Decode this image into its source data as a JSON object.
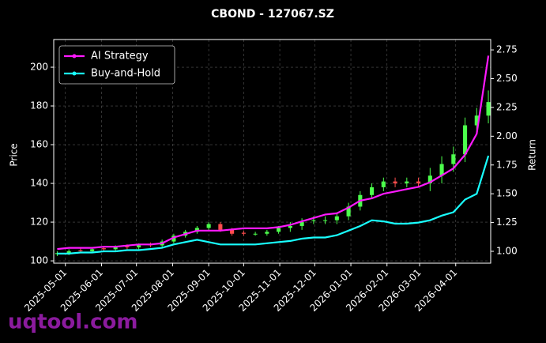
{
  "chart_data": {
    "type": "candlestick",
    "title": "CBOND - 127067.SZ",
    "ylabel": "Price",
    "y2label": "Return",
    "watermark": "uqtool.com",
    "x": [
      "2025-04-24",
      "2025-05-04",
      "2025-05-14",
      "2025-05-24",
      "2025-06-03",
      "2025-06-13",
      "2025-06-23",
      "2025-07-03",
      "2025-07-13",
      "2025-07-23",
      "2025-08-02",
      "2025-08-12",
      "2025-08-22",
      "2025-09-01",
      "2025-09-11",
      "2025-09-21",
      "2025-10-01",
      "2025-10-11",
      "2025-10-21",
      "2025-10-31",
      "2025-11-10",
      "2025-11-20",
      "2025-11-30",
      "2025-12-10",
      "2025-12-20",
      "2025-12-30",
      "2026-01-09",
      "2026-01-19",
      "2026-01-29",
      "2026-02-08",
      "2026-02-18",
      "2026-02-28",
      "2026-03-10",
      "2026-03-20",
      "2026-03-30",
      "2026-04-09",
      "2026-04-19",
      "2026-04-29"
    ],
    "open": [
      103.5,
      104,
      105.5,
      105,
      106.5,
      106,
      107.5,
      107,
      108.5,
      108,
      110,
      113,
      115,
      117,
      119,
      116,
      114.5,
      114,
      114,
      115,
      117,
      118,
      121,
      121,
      121,
      123,
      128,
      134,
      138,
      141,
      140,
      141,
      140,
      144,
      150,
      155,
      170,
      175
    ],
    "high": [
      105,
      106,
      106.5,
      107,
      107.5,
      108,
      108.5,
      109,
      109.5,
      111,
      114,
      116,
      118,
      120,
      120,
      117,
      115.5,
      115,
      116,
      118,
      120,
      122,
      123,
      123,
      125,
      130,
      136,
      140,
      143,
      143,
      143,
      143,
      148,
      154,
      159,
      174,
      179,
      188
    ],
    "low": [
      102.5,
      103,
      104,
      104,
      105,
      105,
      106,
      106,
      107,
      107,
      109,
      112,
      114,
      116,
      115,
      113,
      113,
      113,
      113,
      114,
      115,
      116,
      119,
      119,
      119,
      121,
      126,
      132,
      136,
      138,
      138,
      138,
      136,
      140,
      146,
      151,
      166,
      171
    ],
    "close": [
      104,
      105,
      105,
      106,
      106,
      107,
      107,
      108,
      108,
      110,
      113,
      115,
      117,
      119,
      116,
      114,
      114,
      114,
      115,
      117,
      118,
      120,
      121,
      121,
      123,
      128,
      134,
      138,
      141,
      140,
      141,
      140,
      144,
      150,
      155,
      170,
      175,
      182
    ],
    "up_color": "#4cff4c",
    "down_color": "#ff4c4c",
    "series": [
      {
        "name": "AI Strategy",
        "color": "#ff19ff",
        "axis": "y2",
        "values": [
          1.02,
          1.03,
          1.03,
          1.03,
          1.04,
          1.04,
          1.05,
          1.06,
          1.06,
          1.07,
          1.12,
          1.15,
          1.18,
          1.18,
          1.18,
          1.19,
          1.2,
          1.2,
          1.2,
          1.21,
          1.23,
          1.26,
          1.29,
          1.32,
          1.33,
          1.38,
          1.44,
          1.46,
          1.5,
          1.52,
          1.54,
          1.56,
          1.6,
          1.66,
          1.72,
          1.84,
          2.02,
          2.7
        ]
      },
      {
        "name": "Buy-and-Hold",
        "color": "#19ffff",
        "axis": "y2",
        "values": [
          0.98,
          0.98,
          0.99,
          0.99,
          1.0,
          1.0,
          1.01,
          1.01,
          1.02,
          1.03,
          1.06,
          1.08,
          1.1,
          1.08,
          1.06,
          1.06,
          1.06,
          1.06,
          1.07,
          1.08,
          1.09,
          1.11,
          1.12,
          1.12,
          1.14,
          1.18,
          1.22,
          1.27,
          1.26,
          1.24,
          1.24,
          1.25,
          1.27,
          1.31,
          1.34,
          1.45,
          1.5,
          1.83
        ]
      }
    ],
    "xlim": [
      "2025-04-21",
      "2026-05-01"
    ],
    "xticks": [
      "2025-05-01",
      "2025-06-01",
      "2025-07-01",
      "2025-08-01",
      "2025-09-01",
      "2025-10-01",
      "2025-11-01",
      "2025-12-01",
      "2026-01-01",
      "2026-02-01",
      "2026-03-01",
      "2026-04-01"
    ],
    "ylim": [
      98.8,
      214.3
    ],
    "yticks": [
      100,
      120,
      140,
      160,
      180,
      200
    ],
    "y2lim": [
      0.897,
      2.84
    ],
    "y2ticks": [
      {
        "value": 1,
        "label": "1.00"
      },
      {
        "value": 1.25,
        "label": "1.25"
      },
      {
        "value": 1.5,
        "label": "1.50"
      },
      {
        "value": 1.75,
        "label": "1.75"
      },
      {
        "value": 2,
        "label": "2.00"
      },
      {
        "value": 2.25,
        "label": "2.25"
      },
      {
        "value": 2.5,
        "label": "2.50"
      },
      {
        "value": 2.75,
        "label": "2.75"
      }
    ],
    "grid": true,
    "legend": "upper left"
  }
}
